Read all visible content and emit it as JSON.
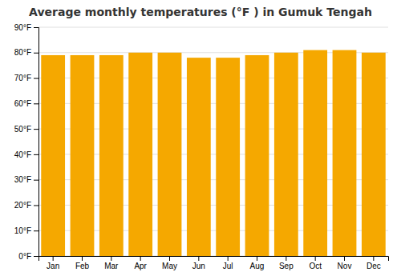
{
  "chart_data": {
    "type": "bar",
    "title": "Average monthly temperatures (°F ) in Gumuk Tengah",
    "categories": [
      "Jan",
      "Feb",
      "Mar",
      "Apr",
      "May",
      "Jun",
      "Jul",
      "Aug",
      "Sep",
      "Oct",
      "Nov",
      "Dec"
    ],
    "values": [
      79,
      79,
      79,
      80,
      80,
      78,
      78,
      79,
      80,
      81,
      81,
      80
    ],
    "color": "#F5A800",
    "ylim": [
      0,
      90
    ],
    "yticks": [
      {
        "value": 0,
        "label": "0°F"
      },
      {
        "value": 10,
        "label": "10°F"
      },
      {
        "value": 20,
        "label": "20°F"
      },
      {
        "value": 30,
        "label": "30°F"
      },
      {
        "value": 40,
        "label": "40°F"
      },
      {
        "value": 50,
        "label": "50°F"
      },
      {
        "value": 60,
        "label": "60°F"
      },
      {
        "value": 70,
        "label": "70°F"
      },
      {
        "value": 80,
        "label": "80°F"
      },
      {
        "value": 90,
        "label": "90°F"
      }
    ],
    "grid": true
  }
}
